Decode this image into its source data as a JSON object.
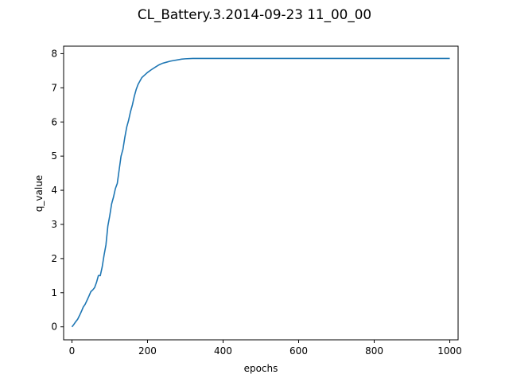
{
  "chart_data": {
    "type": "line",
    "title": "CL_Battery.3.2014-09-23 11_00_00",
    "xlabel": "epochs",
    "ylabel": "q_value",
    "xlim": [
      -22,
      1022
    ],
    "ylim": [
      -0.38,
      8.22
    ],
    "xticks": [
      0,
      200,
      400,
      600,
      800,
      1000
    ],
    "yticks": [
      0,
      1,
      2,
      3,
      4,
      5,
      6,
      7,
      8
    ],
    "grid": false,
    "series": [
      {
        "color": "#1f77b4",
        "x": [
          0,
          5,
          10,
          15,
          20,
          25,
          30,
          35,
          40,
          45,
          50,
          55,
          60,
          65,
          70,
          75,
          80,
          85,
          90,
          95,
          100,
          105,
          110,
          115,
          120,
          125,
          130,
          135,
          140,
          145,
          150,
          155,
          160,
          165,
          170,
          175,
          180,
          185,
          190,
          195,
          200,
          210,
          220,
          230,
          240,
          250,
          260,
          270,
          280,
          290,
          300,
          320,
          350,
          400,
          500,
          600,
          700,
          800,
          900,
          1000
        ],
        "y": [
          0.0,
          0.07,
          0.15,
          0.22,
          0.33,
          0.45,
          0.58,
          0.66,
          0.78,
          0.9,
          1.03,
          1.08,
          1.15,
          1.3,
          1.5,
          1.5,
          1.75,
          2.1,
          2.4,
          2.95,
          3.25,
          3.6,
          3.8,
          4.05,
          4.2,
          4.6,
          5.0,
          5.2,
          5.55,
          5.85,
          6.05,
          6.3,
          6.5,
          6.75,
          6.95,
          7.1,
          7.2,
          7.3,
          7.35,
          7.4,
          7.45,
          7.53,
          7.6,
          7.67,
          7.72,
          7.75,
          7.78,
          7.8,
          7.82,
          7.84,
          7.85,
          7.86,
          7.86,
          7.86,
          7.86,
          7.86,
          7.86,
          7.86,
          7.86,
          7.86
        ]
      }
    ]
  }
}
